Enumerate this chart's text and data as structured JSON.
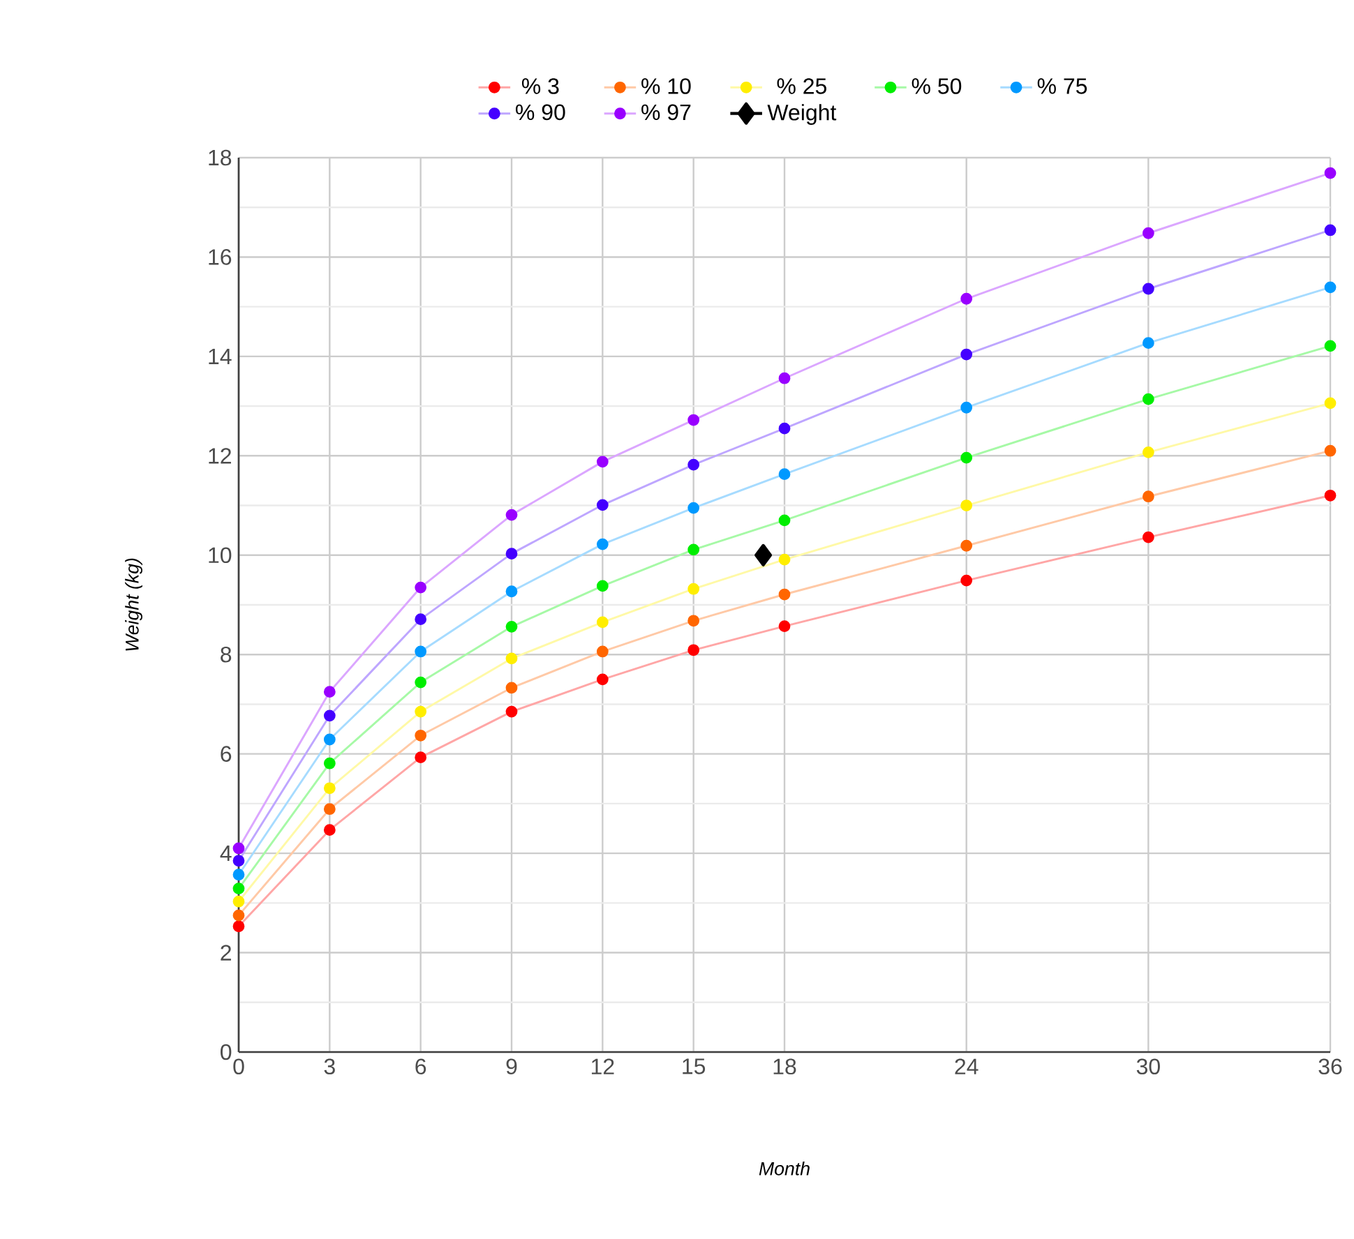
{
  "chart_data": {
    "type": "line",
    "xlabel": "Month",
    "ylabel": "Weight (kg)",
    "x": [
      0,
      3,
      6,
      9,
      12,
      15,
      18,
      24,
      30,
      36
    ],
    "xlim": [
      0,
      36
    ],
    "xticks": [
      0,
      3,
      6,
      9,
      12,
      15,
      18,
      24,
      30,
      36
    ],
    "ylim": [
      0,
      18
    ],
    "yticks": [
      0,
      2,
      4,
      6,
      8,
      10,
      12,
      14,
      16,
      18
    ],
    "grid": true,
    "legend": "top",
    "marker": "circle",
    "line_style": "solid",
    "series": [
      {
        "name": "% 3",
        "color": "#ff0000",
        "values": [
          2.53,
          4.47,
          5.93,
          6.85,
          7.5,
          8.09,
          8.57,
          9.49,
          10.36,
          11.2
        ]
      },
      {
        "name": "% 10",
        "color": "#ff6600",
        "values": [
          2.75,
          4.89,
          6.37,
          7.33,
          8.06,
          8.68,
          9.21,
          10.19,
          11.18,
          12.1
        ]
      },
      {
        "name": "% 25",
        "color": "#ffee00",
        "values": [
          3.03,
          5.31,
          6.85,
          7.92,
          8.65,
          9.32,
          9.91,
          11.0,
          12.07,
          13.06
        ]
      },
      {
        "name": "% 50",
        "color": "#00ee00",
        "values": [
          3.29,
          5.81,
          7.44,
          8.56,
          9.38,
          10.11,
          10.7,
          11.96,
          13.14,
          14.21
        ]
      },
      {
        "name": "% 75",
        "color": "#0099ff",
        "values": [
          3.57,
          6.29,
          8.06,
          9.27,
          10.22,
          10.95,
          11.63,
          12.97,
          14.27,
          15.39
        ]
      },
      {
        "name": "% 90",
        "color": "#4400ff",
        "values": [
          3.85,
          6.77,
          8.71,
          10.03,
          11.01,
          11.82,
          12.55,
          14.04,
          15.36,
          16.54
        ]
      },
      {
        "name": "% 97",
        "color": "#9900ff",
        "values": [
          4.1,
          7.25,
          9.35,
          10.81,
          11.88,
          12.72,
          13.56,
          15.16,
          16.48,
          17.69
        ]
      },
      {
        "name": "Weight",
        "color": "#000000",
        "x": [
          17.3
        ],
        "values": [
          10.0
        ],
        "marker": "diamond"
      }
    ]
  }
}
